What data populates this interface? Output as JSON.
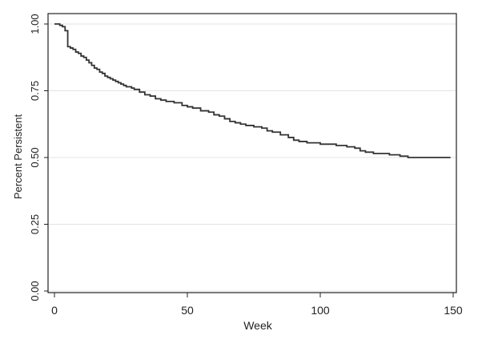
{
  "chart_data": {
    "type": "line",
    "step": true,
    "title": "",
    "xlabel": "Week",
    "ylabel": "Percent Persistent",
    "xlim": [
      0,
      150
    ],
    "ylim": [
      0,
      1
    ],
    "x_ticks": [
      0,
      50,
      100,
      150
    ],
    "x_tick_labels": [
      "0",
      "50",
      "100",
      "150"
    ],
    "y_ticks": [
      0,
      0.25,
      0.5,
      0.75,
      1
    ],
    "y_tick_labels": [
      "0.00",
      "0.25",
      "0.50",
      "0.75",
      "1.00"
    ],
    "grid": "horizontal",
    "series": [
      {
        "color": "#333333",
        "x": [
          0,
          2,
          3,
          4,
          5,
          6,
          7,
          8,
          9,
          10,
          11,
          12,
          13,
          14,
          15,
          16,
          17,
          18,
          19,
          20,
          21,
          22,
          23,
          24,
          25,
          26,
          27,
          28,
          29,
          30,
          32,
          34,
          36,
          38,
          40,
          42,
          45,
          48,
          50,
          52,
          55,
          58,
          60,
          62,
          64,
          66,
          68,
          70,
          72,
          75,
          78,
          80,
          82,
          85,
          88,
          90,
          92,
          95,
          98,
          100,
          103,
          106,
          110,
          113,
          115,
          117,
          120,
          123,
          126,
          130,
          133,
          135,
          140,
          145,
          149
        ],
        "y": [
          1.0,
          0.995,
          0.99,
          0.975,
          0.915,
          0.91,
          0.905,
          0.895,
          0.89,
          0.88,
          0.875,
          0.865,
          0.855,
          0.845,
          0.835,
          0.83,
          0.82,
          0.815,
          0.805,
          0.8,
          0.795,
          0.79,
          0.785,
          0.78,
          0.775,
          0.77,
          0.765,
          0.765,
          0.76,
          0.755,
          0.745,
          0.735,
          0.73,
          0.72,
          0.715,
          0.71,
          0.705,
          0.695,
          0.69,
          0.685,
          0.675,
          0.67,
          0.66,
          0.655,
          0.645,
          0.635,
          0.63,
          0.625,
          0.62,
          0.615,
          0.61,
          0.6,
          0.595,
          0.585,
          0.575,
          0.565,
          0.56,
          0.555,
          0.555,
          0.55,
          0.55,
          0.545,
          0.54,
          0.535,
          0.525,
          0.52,
          0.515,
          0.515,
          0.51,
          0.505,
          0.5,
          0.5,
          0.5,
          0.5,
          0.5
        ]
      }
    ]
  }
}
